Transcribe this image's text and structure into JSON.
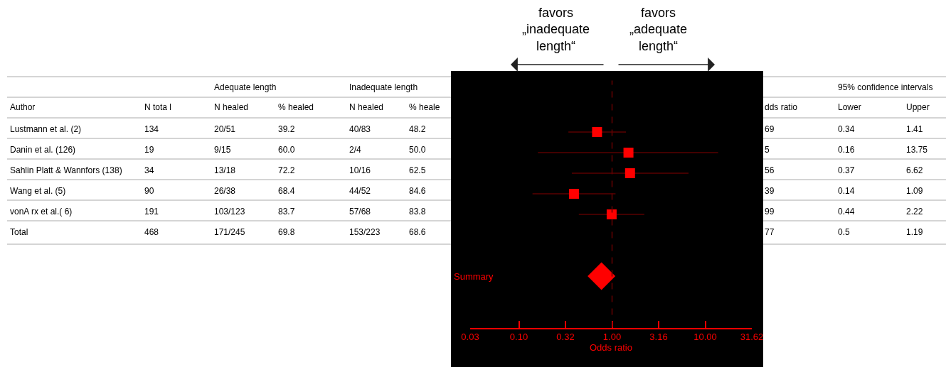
{
  "chart_data": {
    "type": "scatter",
    "orientation": "horizontal",
    "log": "x",
    "xlabel": "Odds ratio",
    "categories": [
      null,
      null,
      null,
      null,
      null,
      null,
      null,
      null,
      null,
      "Summary",
      null,
      null
    ],
    "xlim": [
      0.03,
      31.62
    ],
    "xticks": [
      {
        "value": 0.03,
        "label": "0.03"
      },
      {
        "value": 0.1,
        "label": "0.10"
      },
      {
        "value": 0.316,
        "label": "0.32"
      },
      {
        "value": 1,
        "label": "1.00"
      },
      {
        "value": 3.16,
        "label": "3.16"
      },
      {
        "value": 10,
        "label": "10.00"
      },
      {
        "value": 31.62,
        "label": "31.62"
      }
    ],
    "series": [
      {
        "color": "#ff0000",
        "marker": "square",
        "values": [
          null,
          null,
          0.69,
          1.5,
          1.56,
          0.39,
          0.99,
          null,
          null,
          null,
          null,
          null
        ],
        "errors": [
          null,
          null,
          [
            0.34,
            1.41
          ],
          [
            0.16,
            13.75
          ],
          [
            0.37,
            6.62
          ],
          [
            0.14,
            1.09
          ],
          [
            0.44,
            2.22
          ],
          null,
          null,
          null,
          null,
          null
        ]
      },
      {
        "color": "#ff0000",
        "marker": "diamond",
        "values": [
          null,
          null,
          null,
          null,
          null,
          null,
          null,
          null,
          null,
          0.77,
          null,
          null
        ]
      }
    ],
    "ref_lines": [
      {
        "axis": "x",
        "value": 1,
        "color": "#660000",
        "line_style": "dashed"
      }
    ],
    "grid": false,
    "annotations": [
      "Adequate length",
      "Inadequate length",
      "95% confidence intervals",
      "Author",
      "N tota l",
      "N healed",
      "% healed",
      "N healed",
      "% heale",
      "dds ratio",
      "Lower",
      "Upper",
      "Lustmann et al. (2)",
      "134",
      "20/51",
      "39.2",
      "40/83",
      "48.2",
      "69",
      "0.34",
      "1.41",
      "Danin et al. (126)",
      "19",
      "9/15",
      "60.0",
      "2/4",
      "50.0",
      "5",
      "0.16",
      "13.75",
      "Sahlin Platt & Wannfors (138)",
      "34",
      "13/18",
      "72.2",
      "10/16",
      "62.5",
      "56",
      "0.37",
      "6.62",
      "Wang et al. (5)",
      "90",
      "26/38",
      "68.4",
      "44/52",
      "84.6",
      "39",
      "0.14",
      "1.09",
      "vonA rx et al.( 6)",
      "191",
      "103/123",
      "83.7",
      "57/68",
      "83.8",
      "99",
      "0.44",
      "2.22",
      "Total",
      "468",
      "171/245",
      "69.8",
      "153/223",
      "68.6",
      "77",
      "0.5",
      "1.19",
      "favors\n„inadequate\nlength“",
      "favors\n„adequate\nlength“"
    ]
  }
}
